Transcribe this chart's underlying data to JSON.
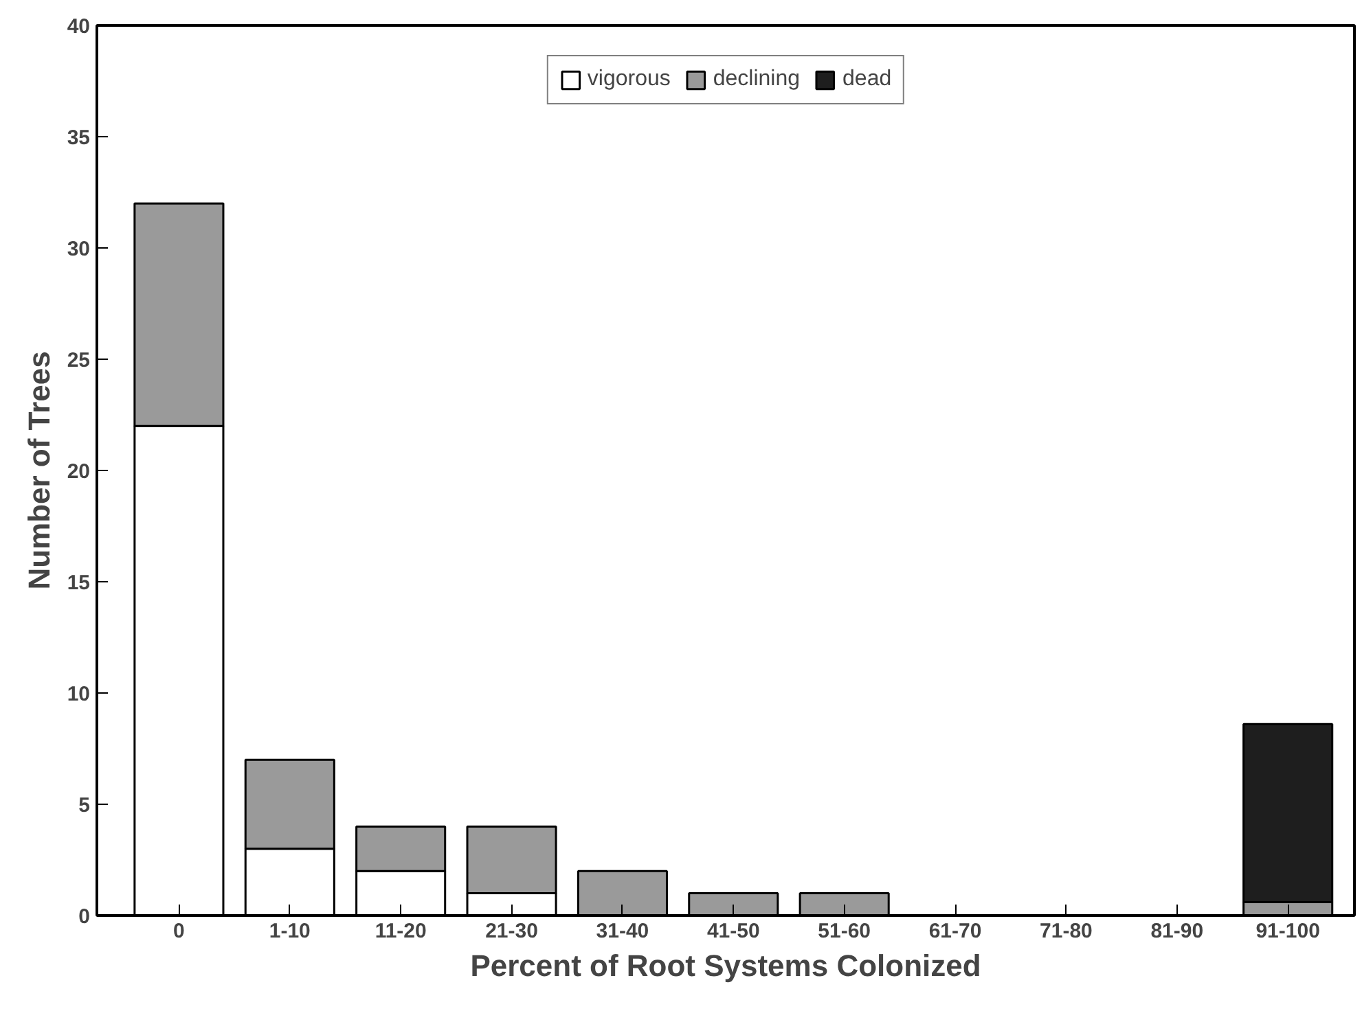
{
  "chart_data": {
    "type": "bar",
    "stacked": true,
    "xlabel": "Percent of Root Systems Colonized",
    "ylabel": "Number of Trees",
    "categories": [
      "0",
      "1-10",
      "11-20",
      "21-30",
      "31-40",
      "41-50",
      "51-60",
      "61-70",
      "71-80",
      "81-90",
      "91-100"
    ],
    "series": [
      {
        "name": "vigorous",
        "color": "#ffffff",
        "values": [
          22,
          3,
          2,
          1,
          0,
          0,
          0,
          0,
          0,
          0,
          0
        ]
      },
      {
        "name": "declining",
        "color": "#9a9a9a",
        "values": [
          10,
          4,
          2,
          3,
          2,
          1,
          1,
          0,
          0,
          0,
          0.6
        ]
      },
      {
        "name": "dead",
        "color": "#1e1e1e",
        "values": [
          0,
          0,
          0,
          0,
          0,
          0,
          0,
          0,
          0,
          0,
          8
        ]
      }
    ],
    "ylim": [
      0,
      40
    ],
    "yticks": [
      0,
      5,
      10,
      15,
      20,
      25,
      30,
      35,
      40
    ],
    "grid": false,
    "legend": "top"
  }
}
